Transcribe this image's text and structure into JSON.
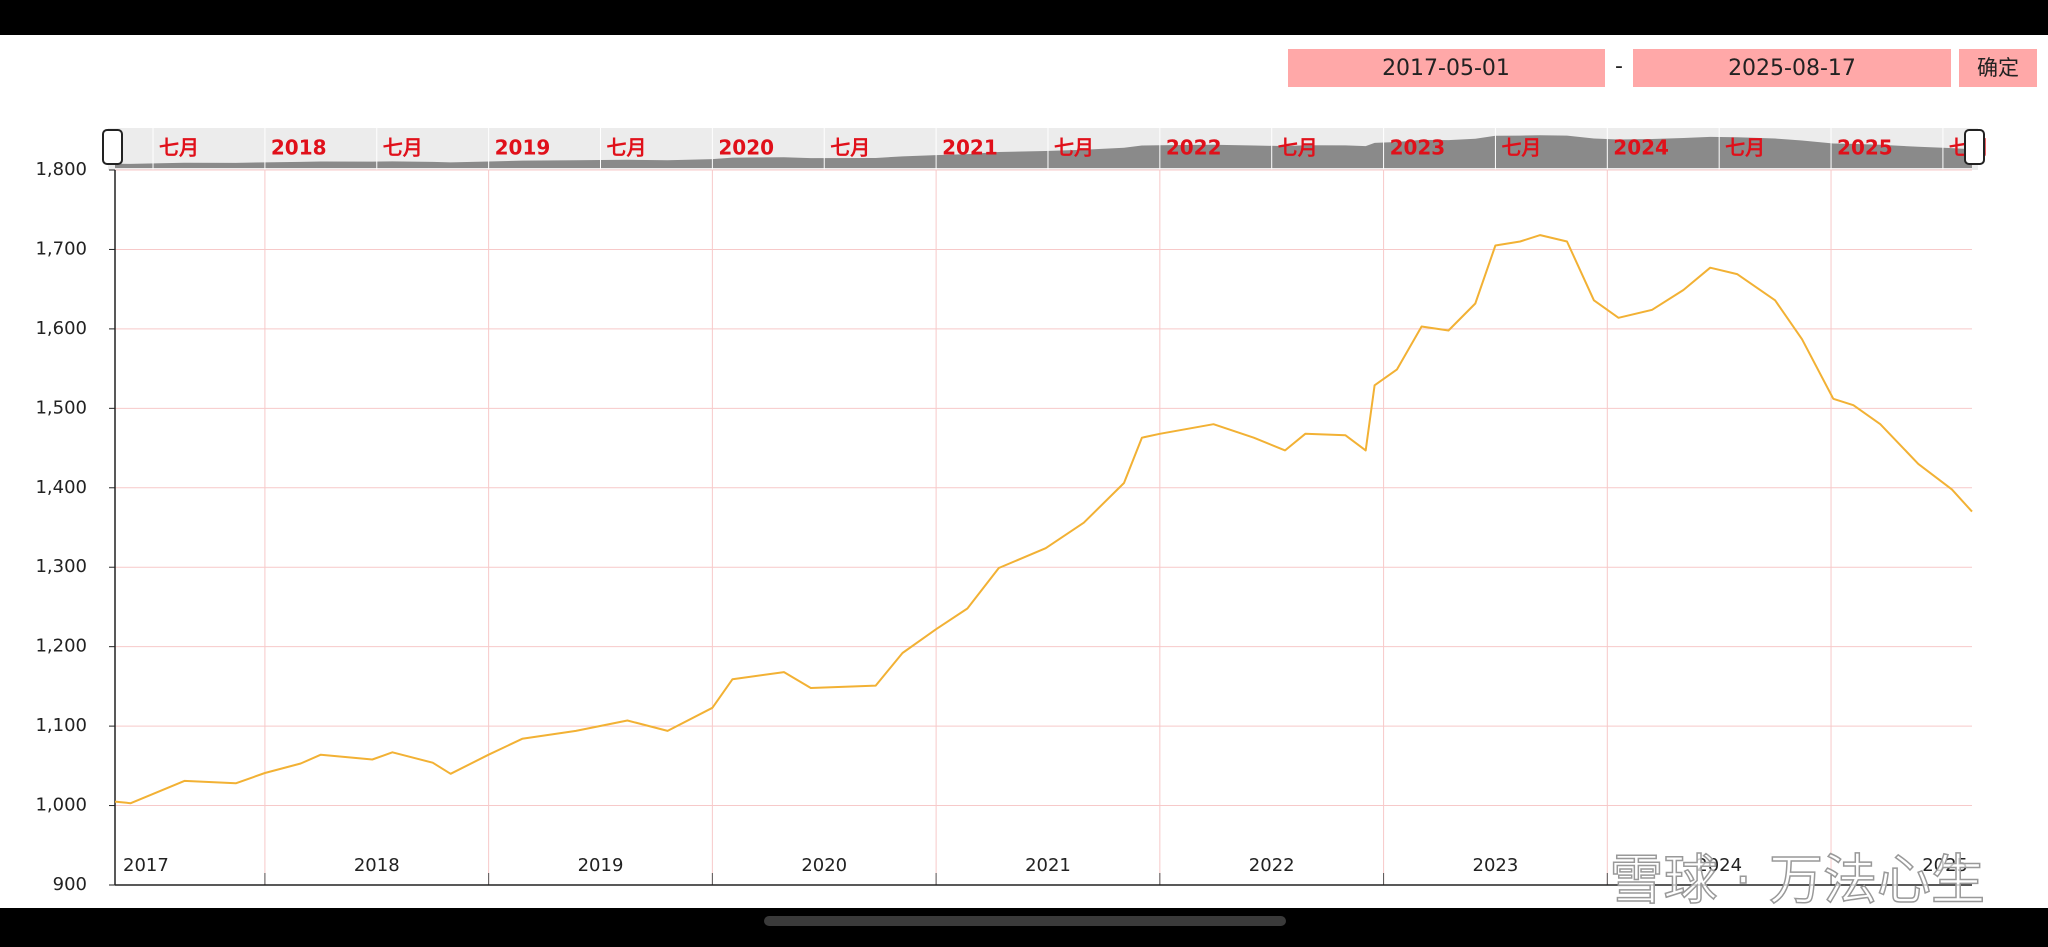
{
  "range_from": "2017-05-01",
  "range_separator": "-",
  "range_to": "2025-08-17",
  "confirm_button": "确定",
  "watermark": "雪球 · 万法心生",
  "chart_data": {
    "type": "line",
    "x": [
      2017.33,
      2017.4,
      2017.64,
      2017.87,
      2018.0,
      2018.16,
      2018.25,
      2018.48,
      2018.57,
      2018.75,
      2018.83,
      2019.0,
      2019.15,
      2019.39,
      2019.62,
      2019.8,
      2020.0,
      2020.09,
      2020.32,
      2020.44,
      2020.73,
      2020.85,
      2021.0,
      2021.14,
      2021.28,
      2021.49,
      2021.66,
      2021.84,
      2021.92,
      2022.0,
      2022.24,
      2022.42,
      2022.56,
      2022.65,
      2022.83,
      2022.92,
      2022.96,
      2023.06,
      2023.17,
      2023.29,
      2023.41,
      2023.5,
      2023.61,
      2023.7,
      2023.82,
      2023.94,
      2024.05,
      2024.2,
      2024.34,
      2024.46,
      2024.58,
      2024.75,
      2024.87,
      2025.01,
      2025.1,
      2025.22,
      2025.39,
      2025.54,
      2025.63
    ],
    "series": [
      {
        "color": "#f2b134",
        "values": [
          1005,
          1003,
          1031,
          1028,
          1041,
          1053,
          1064,
          1058,
          1067,
          1054,
          1040,
          1064,
          1084,
          1094,
          1107,
          1094,
          1123,
          1159,
          1168,
          1148,
          1151,
          1192,
          1222,
          1248,
          1299,
          1324,
          1356,
          1406,
          1463,
          1468,
          1480,
          1463,
          1447,
          1468,
          1466,
          1447,
          1529,
          1549,
          1603,
          1598,
          1632,
          1705,
          1710,
          1718,
          1710,
          1636,
          1614,
          1624,
          1649,
          1677,
          1669,
          1636,
          1587,
          1512,
          1504,
          1480,
          1430,
          1398,
          1370
        ]
      }
    ],
    "xlim": [
      2017.33,
      2025.63
    ],
    "xticks": [
      2018,
      2019,
      2020,
      2021,
      2022,
      2023,
      2024,
      2025
    ],
    "year_labels": [
      2017,
      2018,
      2019,
      2020,
      2021,
      2022,
      2023,
      2024,
      2025
    ],
    "ylim": [
      900,
      1800
    ],
    "yticks": [
      {
        "value": 900,
        "label": "900"
      },
      {
        "value": 1000,
        "label": "1,000"
      },
      {
        "value": 1100,
        "label": "1,100"
      },
      {
        "value": 1200,
        "label": "1,200"
      },
      {
        "value": 1300,
        "label": "1,300"
      },
      {
        "value": 1400,
        "label": "1,400"
      },
      {
        "value": 1500,
        "label": "1,500"
      },
      {
        "value": 1600,
        "label": "1,600"
      },
      {
        "value": 1700,
        "label": "1,700"
      },
      {
        "value": 1800,
        "label": "1,800"
      }
    ],
    "grid": true,
    "grid_color": "#f7c9c9",
    "navigator_ticks": [
      {
        "value": 2017.5,
        "label": "七月"
      },
      {
        "value": 2018,
        "label": "2018"
      },
      {
        "value": 2018.5,
        "label": "七月"
      },
      {
        "value": 2019,
        "label": "2019"
      },
      {
        "value": 2019.5,
        "label": "七月"
      },
      {
        "value": 2020,
        "label": "2020"
      },
      {
        "value": 2020.5,
        "label": "七月"
      },
      {
        "value": 2021,
        "label": "2021"
      },
      {
        "value": 2021.5,
        "label": "七月"
      },
      {
        "value": 2022,
        "label": "2022"
      },
      {
        "value": 2022.5,
        "label": "七月"
      },
      {
        "value": 2023,
        "label": "2023"
      },
      {
        "value": 2023.5,
        "label": "七月"
      },
      {
        "value": 2024,
        "label": "2024"
      },
      {
        "value": 2024.5,
        "label": "七月"
      },
      {
        "value": 2025,
        "label": "2025"
      },
      {
        "value": 2025.5,
        "label": "七月"
      }
    ]
  }
}
